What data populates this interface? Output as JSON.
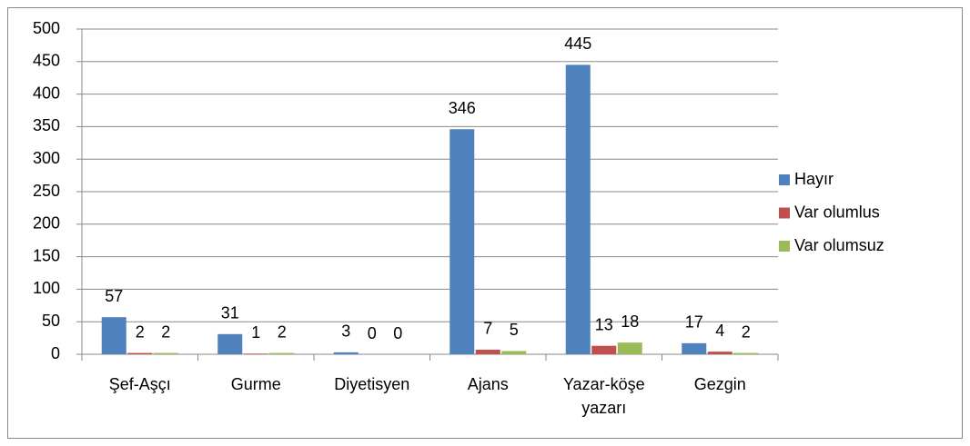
{
  "chart_data": {
    "type": "bar",
    "categories": [
      "Şef-Aşçı",
      "Gurme",
      "Diyetisyen",
      "Ajans",
      "Yazar-köşe yazarı",
      "Gezgin"
    ],
    "series": [
      {
        "name": "Hayır",
        "color": "#4f81bd",
        "values": [
          57,
          31,
          3,
          346,
          445,
          17
        ]
      },
      {
        "name": "Var olumlus",
        "color": "#c0504d",
        "values": [
          2,
          1,
          0,
          7,
          13,
          4
        ]
      },
      {
        "name": "Var olumsuz",
        "color": "#9bbb59",
        "values": [
          2,
          2,
          0,
          5,
          18,
          2
        ]
      }
    ],
    "ylim": [
      0,
      500
    ],
    "yticks": [
      0,
      50,
      100,
      150,
      200,
      250,
      300,
      350,
      400,
      450,
      500
    ],
    "grid": true,
    "legend": "right"
  }
}
